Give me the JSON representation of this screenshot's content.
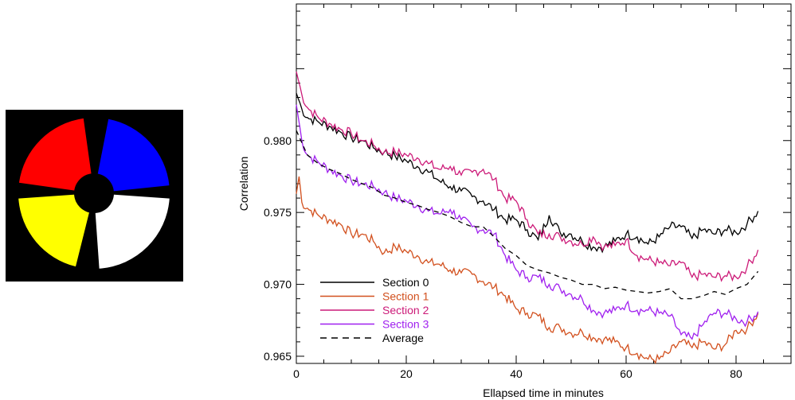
{
  "image": {
    "description_colors": {
      "background": "#000000",
      "quadrants": [
        "#ff0000",
        "#0000ff",
        "#ffff00",
        "#ffffff"
      ]
    }
  },
  "chart_data": {
    "type": "line",
    "xlabel": "Ellapsed time in minutes",
    "ylabel": "Correlation",
    "xlim": [
      0,
      90
    ],
    "ylim": [
      0.9645,
      0.9895
    ],
    "xticks": [
      0,
      20,
      40,
      60,
      80
    ],
    "yticks": [
      0.965,
      0.97,
      0.975,
      0.98
    ],
    "ytick_labels": [
      "0.965",
      "0.970",
      "0.975",
      "0.980"
    ],
    "legend_position": "bottom-left",
    "series": [
      {
        "name": "Section 0",
        "color": "#000000",
        "dash": "solid",
        "x": [
          0,
          1,
          2,
          4,
          6,
          8,
          10,
          12,
          14,
          16,
          18,
          20,
          22,
          24,
          26,
          28,
          30,
          32,
          34,
          36,
          38,
          40,
          42,
          44,
          46,
          48,
          50,
          52,
          54,
          56,
          58,
          60,
          62,
          64,
          66,
          68,
          70,
          72,
          74,
          76,
          78,
          80,
          82,
          84
        ],
        "y": [
          0.9833,
          0.9822,
          0.9816,
          0.9813,
          0.981,
          0.9806,
          0.9802,
          0.98,
          0.9795,
          0.9792,
          0.9789,
          0.9786,
          0.9782,
          0.9778,
          0.9772,
          0.9768,
          0.9765,
          0.9761,
          0.9758,
          0.9752,
          0.9745,
          0.9745,
          0.9738,
          0.9731,
          0.9748,
          0.9736,
          0.9735,
          0.973,
          0.9726,
          0.9726,
          0.973,
          0.9735,
          0.9733,
          0.9728,
          0.9733,
          0.974,
          0.974,
          0.9732,
          0.9738,
          0.9735,
          0.9738,
          0.9736,
          0.9742,
          0.9751
        ]
      },
      {
        "name": "Section 1",
        "color": "#d2501e",
        "dash": "solid",
        "x": [
          0,
          0.5,
          1,
          2,
          4,
          6,
          8,
          10,
          12,
          14,
          16,
          18,
          20,
          22,
          24,
          26,
          28,
          30,
          32,
          34,
          36,
          38,
          40,
          42,
          44,
          46,
          48,
          50,
          52,
          54,
          56,
          58,
          60,
          62,
          64,
          66,
          68,
          70,
          72,
          74,
          76,
          78,
          80,
          82,
          84
        ],
        "y": [
          0.9763,
          0.9775,
          0.9757,
          0.9753,
          0.9748,
          0.9745,
          0.9742,
          0.9735,
          0.9735,
          0.973,
          0.9722,
          0.9726,
          0.9723,
          0.972,
          0.9715,
          0.9714,
          0.971,
          0.9708,
          0.9707,
          0.9702,
          0.9698,
          0.9692,
          0.9683,
          0.968,
          0.9678,
          0.967,
          0.967,
          0.9666,
          0.9667,
          0.9663,
          0.9662,
          0.966,
          0.9656,
          0.9652,
          0.9648,
          0.9648,
          0.9653,
          0.966,
          0.9656,
          0.966,
          0.9655,
          0.9658,
          0.9668,
          0.9669,
          0.968
        ]
      },
      {
        "name": "Section 2",
        "color": "#cc1a78",
        "dash": "solid",
        "x": [
          0,
          1,
          2,
          4,
          6,
          8,
          10,
          12,
          14,
          16,
          18,
          20,
          22,
          24,
          26,
          28,
          30,
          32,
          34,
          36,
          38,
          40,
          42,
          44,
          46,
          48,
          50,
          52,
          54,
          56,
          58,
          60,
          62,
          64,
          66,
          68,
          70,
          72,
          74,
          76,
          78,
          80,
          82,
          84
        ],
        "y": [
          0.9848,
          0.9832,
          0.9823,
          0.9816,
          0.9812,
          0.9808,
          0.9805,
          0.98,
          0.9797,
          0.9792,
          0.9792,
          0.979,
          0.9788,
          0.9784,
          0.978,
          0.9782,
          0.9776,
          0.9778,
          0.978,
          0.9773,
          0.976,
          0.9758,
          0.9745,
          0.9735,
          0.9735,
          0.9733,
          0.973,
          0.9728,
          0.9733,
          0.9726,
          0.9727,
          0.9731,
          0.972,
          0.9717,
          0.9715,
          0.9713,
          0.9715,
          0.9705,
          0.9707,
          0.9705,
          0.9706,
          0.9705,
          0.9712,
          0.9724
        ]
      },
      {
        "name": "Section 3",
        "color": "#a020ef",
        "dash": "solid",
        "x": [
          0,
          1,
          2,
          4,
          6,
          8,
          10,
          12,
          14,
          16,
          18,
          20,
          22,
          24,
          26,
          28,
          30,
          32,
          34,
          36,
          38,
          40,
          42,
          44,
          46,
          48,
          50,
          52,
          54,
          56,
          58,
          60,
          62,
          64,
          66,
          68,
          70,
          72,
          74,
          76,
          78,
          80,
          82,
          84
        ],
        "y": [
          0.9825,
          0.98,
          0.979,
          0.9785,
          0.978,
          0.9776,
          0.9772,
          0.977,
          0.9768,
          0.9764,
          0.976,
          0.9758,
          0.9755,
          0.9751,
          0.9749,
          0.9752,
          0.9745,
          0.974,
          0.9738,
          0.9735,
          0.972,
          0.971,
          0.9705,
          0.9705,
          0.97,
          0.9697,
          0.9693,
          0.969,
          0.9682,
          0.968,
          0.9682,
          0.9686,
          0.9682,
          0.9682,
          0.968,
          0.9678,
          0.9665,
          0.9662,
          0.9672,
          0.968,
          0.968,
          0.9676,
          0.9674,
          0.9681
        ]
      },
      {
        "name": "Average",
        "color": "#000000",
        "dash": "dashed",
        "x": [
          0,
          2,
          4,
          6,
          8,
          10,
          12,
          14,
          16,
          18,
          20,
          22,
          24,
          26,
          28,
          30,
          32,
          34,
          36,
          38,
          40,
          42,
          44,
          46,
          48,
          50,
          52,
          54,
          56,
          58,
          60,
          62,
          64,
          66,
          68,
          70,
          72,
          74,
          76,
          78,
          80,
          82,
          84
        ],
        "y": [
          0.9807,
          0.979,
          0.9784,
          0.978,
          0.9777,
          0.9773,
          0.977,
          0.9767,
          0.9762,
          0.976,
          0.9757,
          0.9755,
          0.9752,
          0.975,
          0.9747,
          0.9743,
          0.974,
          0.974,
          0.9733,
          0.9725,
          0.972,
          0.9713,
          0.971,
          0.9708,
          0.9705,
          0.9703,
          0.97,
          0.97,
          0.9697,
          0.9698,
          0.9696,
          0.9695,
          0.9694,
          0.9695,
          0.9697,
          0.969,
          0.969,
          0.9692,
          0.9695,
          0.9693,
          0.9697,
          0.97,
          0.9709
        ]
      }
    ]
  }
}
